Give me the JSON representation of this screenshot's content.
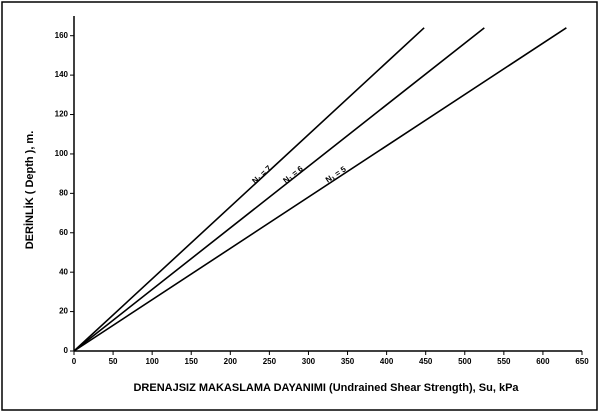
{
  "chart_data": {
    "type": "line",
    "xlabel": "DRENAJSIZ MAKASLAMA DAYANIMI (Undrained Shear Strength), Su, kPa",
    "ylabel": "DERİNLİK ( Depth ), m.",
    "series": [
      {
        "name": "N₁ = 7",
        "color": "#000000",
        "x": [
          0,
          448
        ],
        "values": [
          0,
          164
        ]
      },
      {
        "name": "N₁ = 6",
        "color": "#000000",
        "x": [
          0,
          525
        ],
        "values": [
          0,
          164
        ]
      },
      {
        "name": "N₁ = 5",
        "color": "#000000",
        "x": [
          0,
          630
        ],
        "values": [
          0,
          164
        ]
      }
    ],
    "xlim": [
      0,
      650
    ],
    "xticks": [
      0,
      50,
      100,
      150,
      200,
      250,
      300,
      350,
      400,
      450,
      500,
      550,
      600,
      650
    ],
    "ylim": [
      0,
      170
    ],
    "yticks": [
      0,
      20,
      40,
      60,
      80,
      100,
      120,
      140,
      160
    ],
    "grid": false
  }
}
